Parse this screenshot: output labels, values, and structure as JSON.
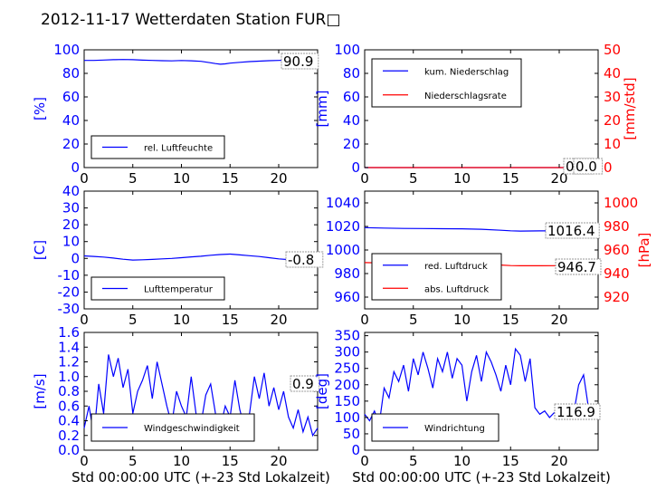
{
  "page_title": "2012-11-17 Wetterdaten Station FUR□",
  "colors": {
    "left_axis": "#0000ff",
    "right_axis": "#ff0000",
    "line1": "#0000ff",
    "line2": "#ff0000"
  },
  "chart_data": [
    {
      "id": "humidity",
      "type": "line",
      "ylabel": "[%]",
      "xlim": [
        0,
        24
      ],
      "ylim": [
        0,
        100
      ],
      "xticks": [
        0,
        5,
        10,
        15,
        20
      ],
      "yticks": [
        0,
        20,
        40,
        60,
        80,
        100
      ],
      "legend_placement": "lower-left",
      "series": [
        {
          "name": "rel. Luftfeuchte",
          "axis": "left",
          "color": "#0000ff",
          "x": [
            0,
            1,
            2,
            3,
            4,
            5,
            6,
            7,
            8,
            9,
            10,
            11,
            12,
            13,
            13.5,
            14,
            14.5,
            15,
            16,
            17,
            18,
            19,
            20,
            21,
            22,
            23,
            24
          ],
          "y": [
            91,
            91,
            91.3,
            91.6,
            91.8,
            91.6,
            91.2,
            91,
            90.8,
            90.6,
            90.9,
            90.7,
            90.2,
            89,
            88.3,
            87.8,
            88.1,
            88.7,
            89.4,
            90,
            90.4,
            90.8,
            91,
            91.3,
            91,
            90.9,
            90.9
          ]
        }
      ],
      "annotations": [
        {
          "text": "90.9"
        }
      ]
    },
    {
      "id": "precipitation",
      "type": "line",
      "ylabel": "[mm]",
      "ylabel_right": "[mm/std]",
      "xlim": [
        0,
        24
      ],
      "ylim": [
        0,
        100
      ],
      "ylim_right": [
        0,
        50
      ],
      "xticks": [
        0,
        5,
        10,
        15,
        20
      ],
      "yticks": [
        0,
        20,
        40,
        60,
        80,
        100
      ],
      "yticks_right": [
        0,
        10,
        20,
        30,
        40,
        50
      ],
      "legend_placement": "upper-left",
      "series": [
        {
          "name": "kum. Niederschlag",
          "axis": "left",
          "color": "#0000ff",
          "x": [
            0,
            24
          ],
          "y": [
            0,
            0
          ]
        },
        {
          "name": "Niederschlagsrate",
          "axis": "right",
          "color": "#ff0000",
          "x": [
            0,
            24
          ],
          "y": [
            0,
            0
          ]
        }
      ],
      "annotations": [
        {
          "text": "0.0"
        },
        {
          "text": "0.0"
        }
      ]
    },
    {
      "id": "temperature",
      "type": "line",
      "ylabel": "[C]",
      "xlim": [
        0,
        24
      ],
      "ylim": [
        -30,
        40
      ],
      "xticks": [
        0,
        5,
        10,
        15,
        20
      ],
      "yticks": [
        -30,
        -20,
        -10,
        0,
        10,
        20,
        30,
        40
      ],
      "legend_placement": "lower-left",
      "series": [
        {
          "name": "Lufttemperatur",
          "axis": "left",
          "color": "#0000ff",
          "x": [
            0,
            1,
            2,
            3,
            4,
            5,
            6,
            7,
            8,
            9,
            10,
            11,
            12,
            13,
            14,
            15,
            16,
            17,
            18,
            19,
            20,
            21,
            22,
            23,
            24
          ],
          "y": [
            1.5,
            1.2,
            0.8,
            0.2,
            -0.5,
            -1,
            -0.8,
            -0.6,
            -0.3,
            0,
            0.4,
            0.9,
            1.3,
            1.9,
            2.3,
            2.6,
            2.1,
            1.6,
            1.1,
            0.4,
            -0.3,
            -0.7,
            -0.8,
            -0.8,
            -0.8
          ]
        }
      ],
      "annotations": [
        {
          "text": "-0.8"
        }
      ]
    },
    {
      "id": "pressure",
      "type": "line",
      "ylabel": "[hPa]",
      "xlim": [
        0,
        24
      ],
      "ylim": [
        950,
        1050
      ],
      "ylim_right": [
        910,
        1010
      ],
      "xticks": [
        0,
        5,
        10,
        15,
        20
      ],
      "yticks": [
        960,
        980,
        1000,
        1020,
        1040
      ],
      "yticks_right": [
        920,
        940,
        960,
        980,
        1000
      ],
      "legend_placement": "lower-left",
      "series": [
        {
          "name": "red. Luftdruck",
          "axis": "left",
          "color": "#0000ff",
          "x": [
            0,
            2,
            4,
            6,
            8,
            10,
            12,
            14,
            15,
            16,
            18,
            20,
            22,
            24
          ],
          "y": [
            1019,
            1018.6,
            1018.3,
            1018.2,
            1018.1,
            1018,
            1017.6,
            1016.8,
            1016.3,
            1016.1,
            1016.2,
            1016.3,
            1016.4,
            1016.4
          ]
        },
        {
          "name": "abs. Luftdruck",
          "axis": "right",
          "color": "#ff0000",
          "x": [
            0,
            2,
            4,
            6,
            8,
            10,
            12,
            14,
            15,
            16,
            18,
            20,
            22,
            24
          ],
          "y": [
            949.3,
            949,
            948.8,
            948.6,
            948.5,
            948.4,
            948,
            947.2,
            946.8,
            946.6,
            946.6,
            946.7,
            946.7,
            946.7
          ]
        }
      ],
      "annotations": [
        {
          "text": "1016.4"
        },
        {
          "text": "946.7"
        }
      ]
    },
    {
      "id": "windspeed",
      "type": "line",
      "ylabel": "[m/s]",
      "xlabel": "Std 00:00:00 UTC (+-23 Std Lokalzeit)",
      "xlim": [
        0,
        24
      ],
      "ylim": [
        0,
        1.6
      ],
      "xticks": [
        0,
        5,
        10,
        15,
        20
      ],
      "yticks": [
        0,
        0.2,
        0.4,
        0.6,
        0.8,
        1.0,
        1.2,
        1.4,
        1.6
      ],
      "legend_placement": "lower-center",
      "series": [
        {
          "name": "Windgeschwindigkeit",
          "axis": "left",
          "color": "#0000ff",
          "x": [
            0,
            0.5,
            1,
            1.5,
            2,
            2.5,
            3,
            3.5,
            4,
            4.5,
            5,
            5.5,
            6,
            6.5,
            7,
            7.5,
            8,
            8.5,
            9,
            9.5,
            10,
            10.5,
            11,
            11.5,
            12,
            12.5,
            13,
            13.5,
            14,
            14.5,
            15,
            15.5,
            16,
            16.5,
            17,
            17.5,
            18,
            18.5,
            19,
            19.5,
            20,
            20.5,
            21,
            21.5,
            22,
            22.5,
            23,
            23.5,
            24
          ],
          "y": [
            0.3,
            0.6,
            0.2,
            0.9,
            0.5,
            1.3,
            1.0,
            1.25,
            0.85,
            1.1,
            0.5,
            0.8,
            0.95,
            1.15,
            0.7,
            1.2,
            0.9,
            0.6,
            0.35,
            0.8,
            0.6,
            0.45,
            1.0,
            0.5,
            0.35,
            0.75,
            0.9,
            0.5,
            0.3,
            0.6,
            0.45,
            0.95,
            0.55,
            0.3,
            0.5,
            1.0,
            0.7,
            1.05,
            0.6,
            0.85,
            0.55,
            0.8,
            0.45,
            0.3,
            0.55,
            0.25,
            0.45,
            0.2,
            0.3
          ]
        }
      ],
      "annotations": [
        {
          "text": "0.9"
        }
      ]
    },
    {
      "id": "winddirection",
      "type": "line",
      "ylabel": "[deg]",
      "xlabel": "Std 00:00:00 UTC (+-23 Std Lokalzeit)",
      "xlim": [
        0,
        24
      ],
      "ylim": [
        0,
        360
      ],
      "xticks": [
        0,
        5,
        10,
        15,
        20
      ],
      "yticks": [
        0,
        50,
        100,
        150,
        200,
        250,
        300,
        350
      ],
      "legend_placement": "lower-center",
      "series": [
        {
          "name": "Windrichtung",
          "axis": "left",
          "color": "#0000ff",
          "x": [
            0,
            0.5,
            1,
            1.5,
            2,
            2.5,
            3,
            3.5,
            4,
            4.5,
            5,
            5.5,
            6,
            6.5,
            7,
            7.5,
            8,
            8.5,
            9,
            9.5,
            10,
            10.5,
            11,
            11.5,
            12,
            12.5,
            13,
            13.5,
            14,
            14.5,
            15,
            15.5,
            16,
            16.5,
            17,
            17.5,
            18,
            18.5,
            19,
            19.5,
            20,
            20.5,
            21,
            21.5,
            22,
            22.5,
            23,
            23.5,
            24
          ],
          "y": [
            110,
            90,
            120,
            80,
            190,
            160,
            240,
            210,
            260,
            180,
            280,
            230,
            300,
            250,
            190,
            280,
            240,
            300,
            220,
            280,
            260,
            150,
            240,
            290,
            210,
            300,
            270,
            230,
            180,
            260,
            200,
            310,
            290,
            210,
            280,
            130,
            110,
            120,
            100,
            115,
            110,
            120,
            105,
            115,
            200,
            230,
            130,
            100,
            120
          ]
        }
      ],
      "annotations": [
        {
          "text": "116.9"
        }
      ]
    }
  ]
}
